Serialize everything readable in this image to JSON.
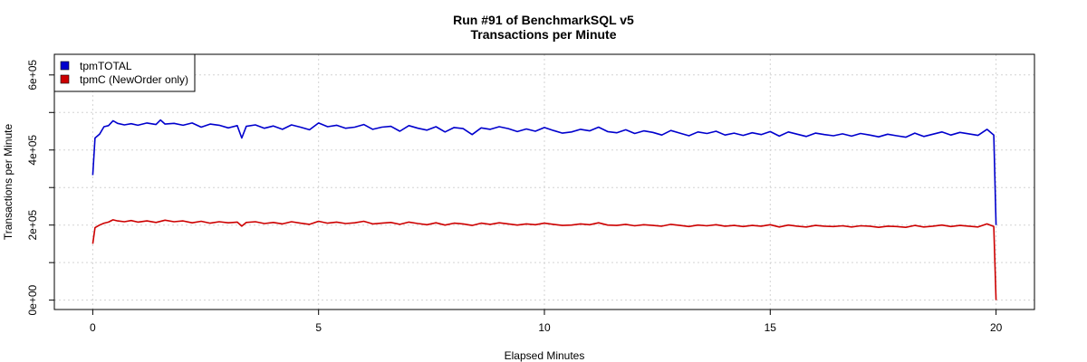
{
  "chart_data": {
    "type": "line",
    "title": "Run #91 of BenchmarkSQL v5",
    "subtitle": "Transactions per Minute",
    "xlabel": "Elapsed Minutes",
    "ylabel": "Transactions per Minute",
    "xlim": [
      -0.85,
      20.85
    ],
    "ylim": [
      -25000,
      655000
    ],
    "x_ticks": [
      0,
      5,
      10,
      15,
      20
    ],
    "x_tick_labels": [
      "0",
      "5",
      "10",
      "15",
      "20"
    ],
    "y_ticks": [
      0,
      100000,
      200000,
      300000,
      400000,
      500000,
      600000
    ],
    "y_tick_labels": [
      "0e+00",
      "",
      "2e+05",
      "",
      "4e+05",
      "",
      "6e+05"
    ],
    "grid": true,
    "legend_position": "top-left",
    "series": [
      {
        "name": "tpmTOTAL",
        "color": "#0000cd",
        "x": [
          0,
          0.05,
          0.15,
          0.25,
          0.35,
          0.45,
          0.55,
          0.7,
          0.85,
          1.0,
          1.2,
          1.4,
          1.5,
          1.6,
          1.8,
          2.0,
          2.2,
          2.4,
          2.6,
          2.8,
          3.0,
          3.2,
          3.3,
          3.4,
          3.6,
          3.8,
          4.0,
          4.2,
          4.4,
          4.6,
          4.8,
          5.0,
          5.2,
          5.4,
          5.6,
          5.8,
          6.0,
          6.2,
          6.4,
          6.6,
          6.8,
          7.0,
          7.2,
          7.4,
          7.6,
          7.8,
          8.0,
          8.2,
          8.4,
          8.6,
          8.8,
          9.0,
          9.2,
          9.4,
          9.6,
          9.8,
          10.0,
          10.2,
          10.4,
          10.6,
          10.8,
          11.0,
          11.2,
          11.4,
          11.6,
          11.8,
          12.0,
          12.2,
          12.4,
          12.6,
          12.8,
          13.0,
          13.2,
          13.4,
          13.6,
          13.8,
          14.0,
          14.2,
          14.4,
          14.6,
          14.8,
          15.0,
          15.2,
          15.4,
          15.6,
          15.8,
          16.0,
          16.2,
          16.4,
          16.6,
          16.8,
          17.0,
          17.2,
          17.4,
          17.6,
          17.8,
          18.0,
          18.2,
          18.4,
          18.6,
          18.8,
          19.0,
          19.2,
          19.4,
          19.6,
          19.8,
          19.95,
          20.0
        ],
        "y": [
          333000,
          432000,
          442000,
          462000,
          465000,
          478000,
          471000,
          467000,
          470000,
          466000,
          472000,
          468000,
          480000,
          469000,
          471000,
          466000,
          472000,
          461000,
          469000,
          466000,
          459000,
          465000,
          432000,
          463000,
          467000,
          458000,
          464000,
          455000,
          467000,
          461000,
          454000,
          472000,
          462000,
          466000,
          458000,
          461000,
          468000,
          455000,
          461000,
          463000,
          450000,
          465000,
          458000,
          453000,
          462000,
          448000,
          460000,
          457000,
          441000,
          459000,
          455000,
          462000,
          457000,
          449000,
          456000,
          450000,
          460000,
          452000,
          445000,
          448000,
          455000,
          451000,
          461000,
          449000,
          446000,
          454000,
          444000,
          451000,
          447000,
          440000,
          452000,
          445000,
          438000,
          448000,
          444000,
          450000,
          440000,
          445000,
          439000,
          446000,
          441000,
          449000,
          437000,
          448000,
          442000,
          436000,
          445000,
          441000,
          438000,
          443000,
          437000,
          444000,
          440000,
          435000,
          442000,
          438000,
          434000,
          445000,
          436000,
          442000,
          448000,
          440000,
          447000,
          443000,
          439000,
          455000,
          440000,
          200000
        ]
      },
      {
        "name": "tpmC (NewOrder only)",
        "color": "#cd0000",
        "x": [
          0,
          0.05,
          0.15,
          0.25,
          0.35,
          0.45,
          0.55,
          0.7,
          0.85,
          1.0,
          1.2,
          1.4,
          1.6,
          1.8,
          2.0,
          2.2,
          2.4,
          2.6,
          2.8,
          3.0,
          3.2,
          3.3,
          3.4,
          3.6,
          3.8,
          4.0,
          4.2,
          4.4,
          4.6,
          4.8,
          5.0,
          5.2,
          5.4,
          5.6,
          5.8,
          6.0,
          6.2,
          6.4,
          6.6,
          6.8,
          7.0,
          7.2,
          7.4,
          7.6,
          7.8,
          8.0,
          8.2,
          8.4,
          8.6,
          8.8,
          9.0,
          9.2,
          9.4,
          9.6,
          9.8,
          10.0,
          10.2,
          10.4,
          10.6,
          10.8,
          11.0,
          11.2,
          11.4,
          11.6,
          11.8,
          12.0,
          12.2,
          12.4,
          12.6,
          12.8,
          13.0,
          13.2,
          13.4,
          13.6,
          13.8,
          14.0,
          14.2,
          14.4,
          14.6,
          14.8,
          15.0,
          15.2,
          15.4,
          15.6,
          15.8,
          16.0,
          16.2,
          16.4,
          16.6,
          16.8,
          17.0,
          17.2,
          17.4,
          17.6,
          17.8,
          18.0,
          18.2,
          18.4,
          18.6,
          18.8,
          19.0,
          19.2,
          19.4,
          19.6,
          19.8,
          19.95,
          20.0
        ],
        "y": [
          150000,
          193000,
          200000,
          205000,
          208000,
          214000,
          211000,
          209000,
          212000,
          208000,
          211000,
          207000,
          213000,
          209000,
          211000,
          206000,
          210000,
          205000,
          209000,
          206000,
          208000,
          197000,
          207000,
          209000,
          204000,
          207000,
          203000,
          209000,
          205000,
          202000,
          210000,
          205000,
          208000,
          204000,
          206000,
          210000,
          203000,
          205000,
          207000,
          202000,
          208000,
          204000,
          201000,
          206000,
          200000,
          205000,
          203000,
          199000,
          205000,
          202000,
          206000,
          203000,
          200000,
          203000,
          201000,
          205000,
          202000,
          199000,
          200000,
          203000,
          201000,
          206000,
          200000,
          199000,
          202000,
          198000,
          201000,
          199000,
          197000,
          202000,
          199000,
          196000,
          200000,
          198000,
          201000,
          197000,
          199000,
          196000,
          199000,
          197000,
          201000,
          195000,
          200000,
          197000,
          195000,
          199000,
          197000,
          196000,
          198000,
          195000,
          198000,
          197000,
          194000,
          197000,
          196000,
          194000,
          199000,
          195000,
          197000,
          200000,
          196000,
          199000,
          197000,
          195000,
          203000,
          196000,
          0
        ]
      }
    ]
  }
}
